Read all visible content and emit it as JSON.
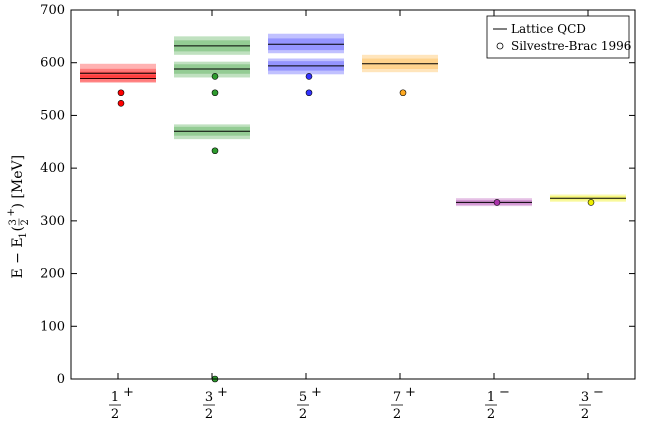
{
  "chart_data": {
    "type": "scatter",
    "ylabel": "E − E_1(3/2^+) [MeV]",
    "ylim": [
      0,
      700
    ],
    "yticks": [
      0,
      100,
      200,
      300,
      400,
      500,
      600,
      700
    ],
    "grid": false,
    "zero_line": "dashed",
    "legend_position": "top-right",
    "legend": [
      {
        "label": "Lattice QCD",
        "marker": "line"
      },
      {
        "label": "Silvestre-Brac 1996",
        "marker": "open-circle"
      }
    ],
    "categories": [
      {
        "num": "1",
        "den": "2",
        "parity": "+",
        "color": "#ff0000",
        "lattice": [
          {
            "value": 570,
            "band": [
              562,
              583
            ]
          },
          {
            "value": 580,
            "band": [
              570,
              598
            ]
          }
        ],
        "model": [
          523,
          543
        ]
      },
      {
        "num": "3",
        "den": "2",
        "parity": "+",
        "color": "#2e9b2e",
        "lattice": [
          {
            "value": 0,
            "band": [
              0,
              0
            ]
          },
          {
            "value": 470,
            "band": [
              455,
              483
            ]
          },
          {
            "value": 588,
            "band": [
              572,
              602
            ]
          },
          {
            "value": 632,
            "band": [
              615,
              650
            ]
          }
        ],
        "model": [
          0,
          433,
          543,
          574
        ]
      },
      {
        "num": "5",
        "den": "2",
        "parity": "+",
        "color": "#3333ff",
        "lattice": [
          {
            "value": 594,
            "band": [
              578,
              608
            ]
          },
          {
            "value": 635,
            "band": [
              618,
              655
            ]
          }
        ],
        "model": [
          543,
          574
        ]
      },
      {
        "num": "7",
        "den": "2",
        "parity": "+",
        "color": "#ffaa22",
        "lattice": [
          {
            "value": 598,
            "band": [
              582,
              615
            ]
          }
        ],
        "model": [
          543
        ]
      },
      {
        "num": "1",
        "den": "2",
        "parity": "−",
        "color": "#aa33aa",
        "lattice": [
          {
            "value": 335,
            "band": [
              328,
              343
            ]
          }
        ],
        "model": [
          335
        ]
      },
      {
        "num": "3",
        "den": "2",
        "parity": "−",
        "color": "#eeee00",
        "lattice": [
          {
            "value": 343,
            "band": [
              336,
              350
            ]
          }
        ],
        "model": [
          335
        ]
      }
    ]
  }
}
